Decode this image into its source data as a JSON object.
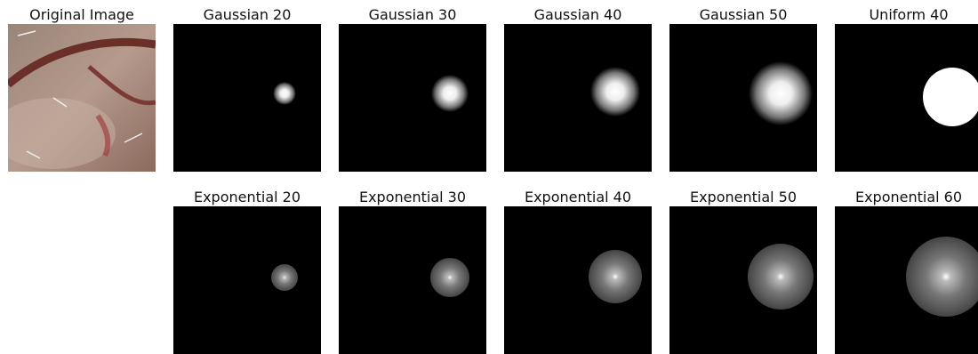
{
  "top_row": [
    "Original Image",
    "Gaussian 20",
    "Gaussian 30",
    "Gaussian 40",
    "Gaussian 50",
    "Uniform 40"
  ],
  "bottom_row": [
    "Exponential 20",
    "Exponential 30",
    "Exponential 40",
    "Exponential 50",
    "Exponential 60"
  ]
}
